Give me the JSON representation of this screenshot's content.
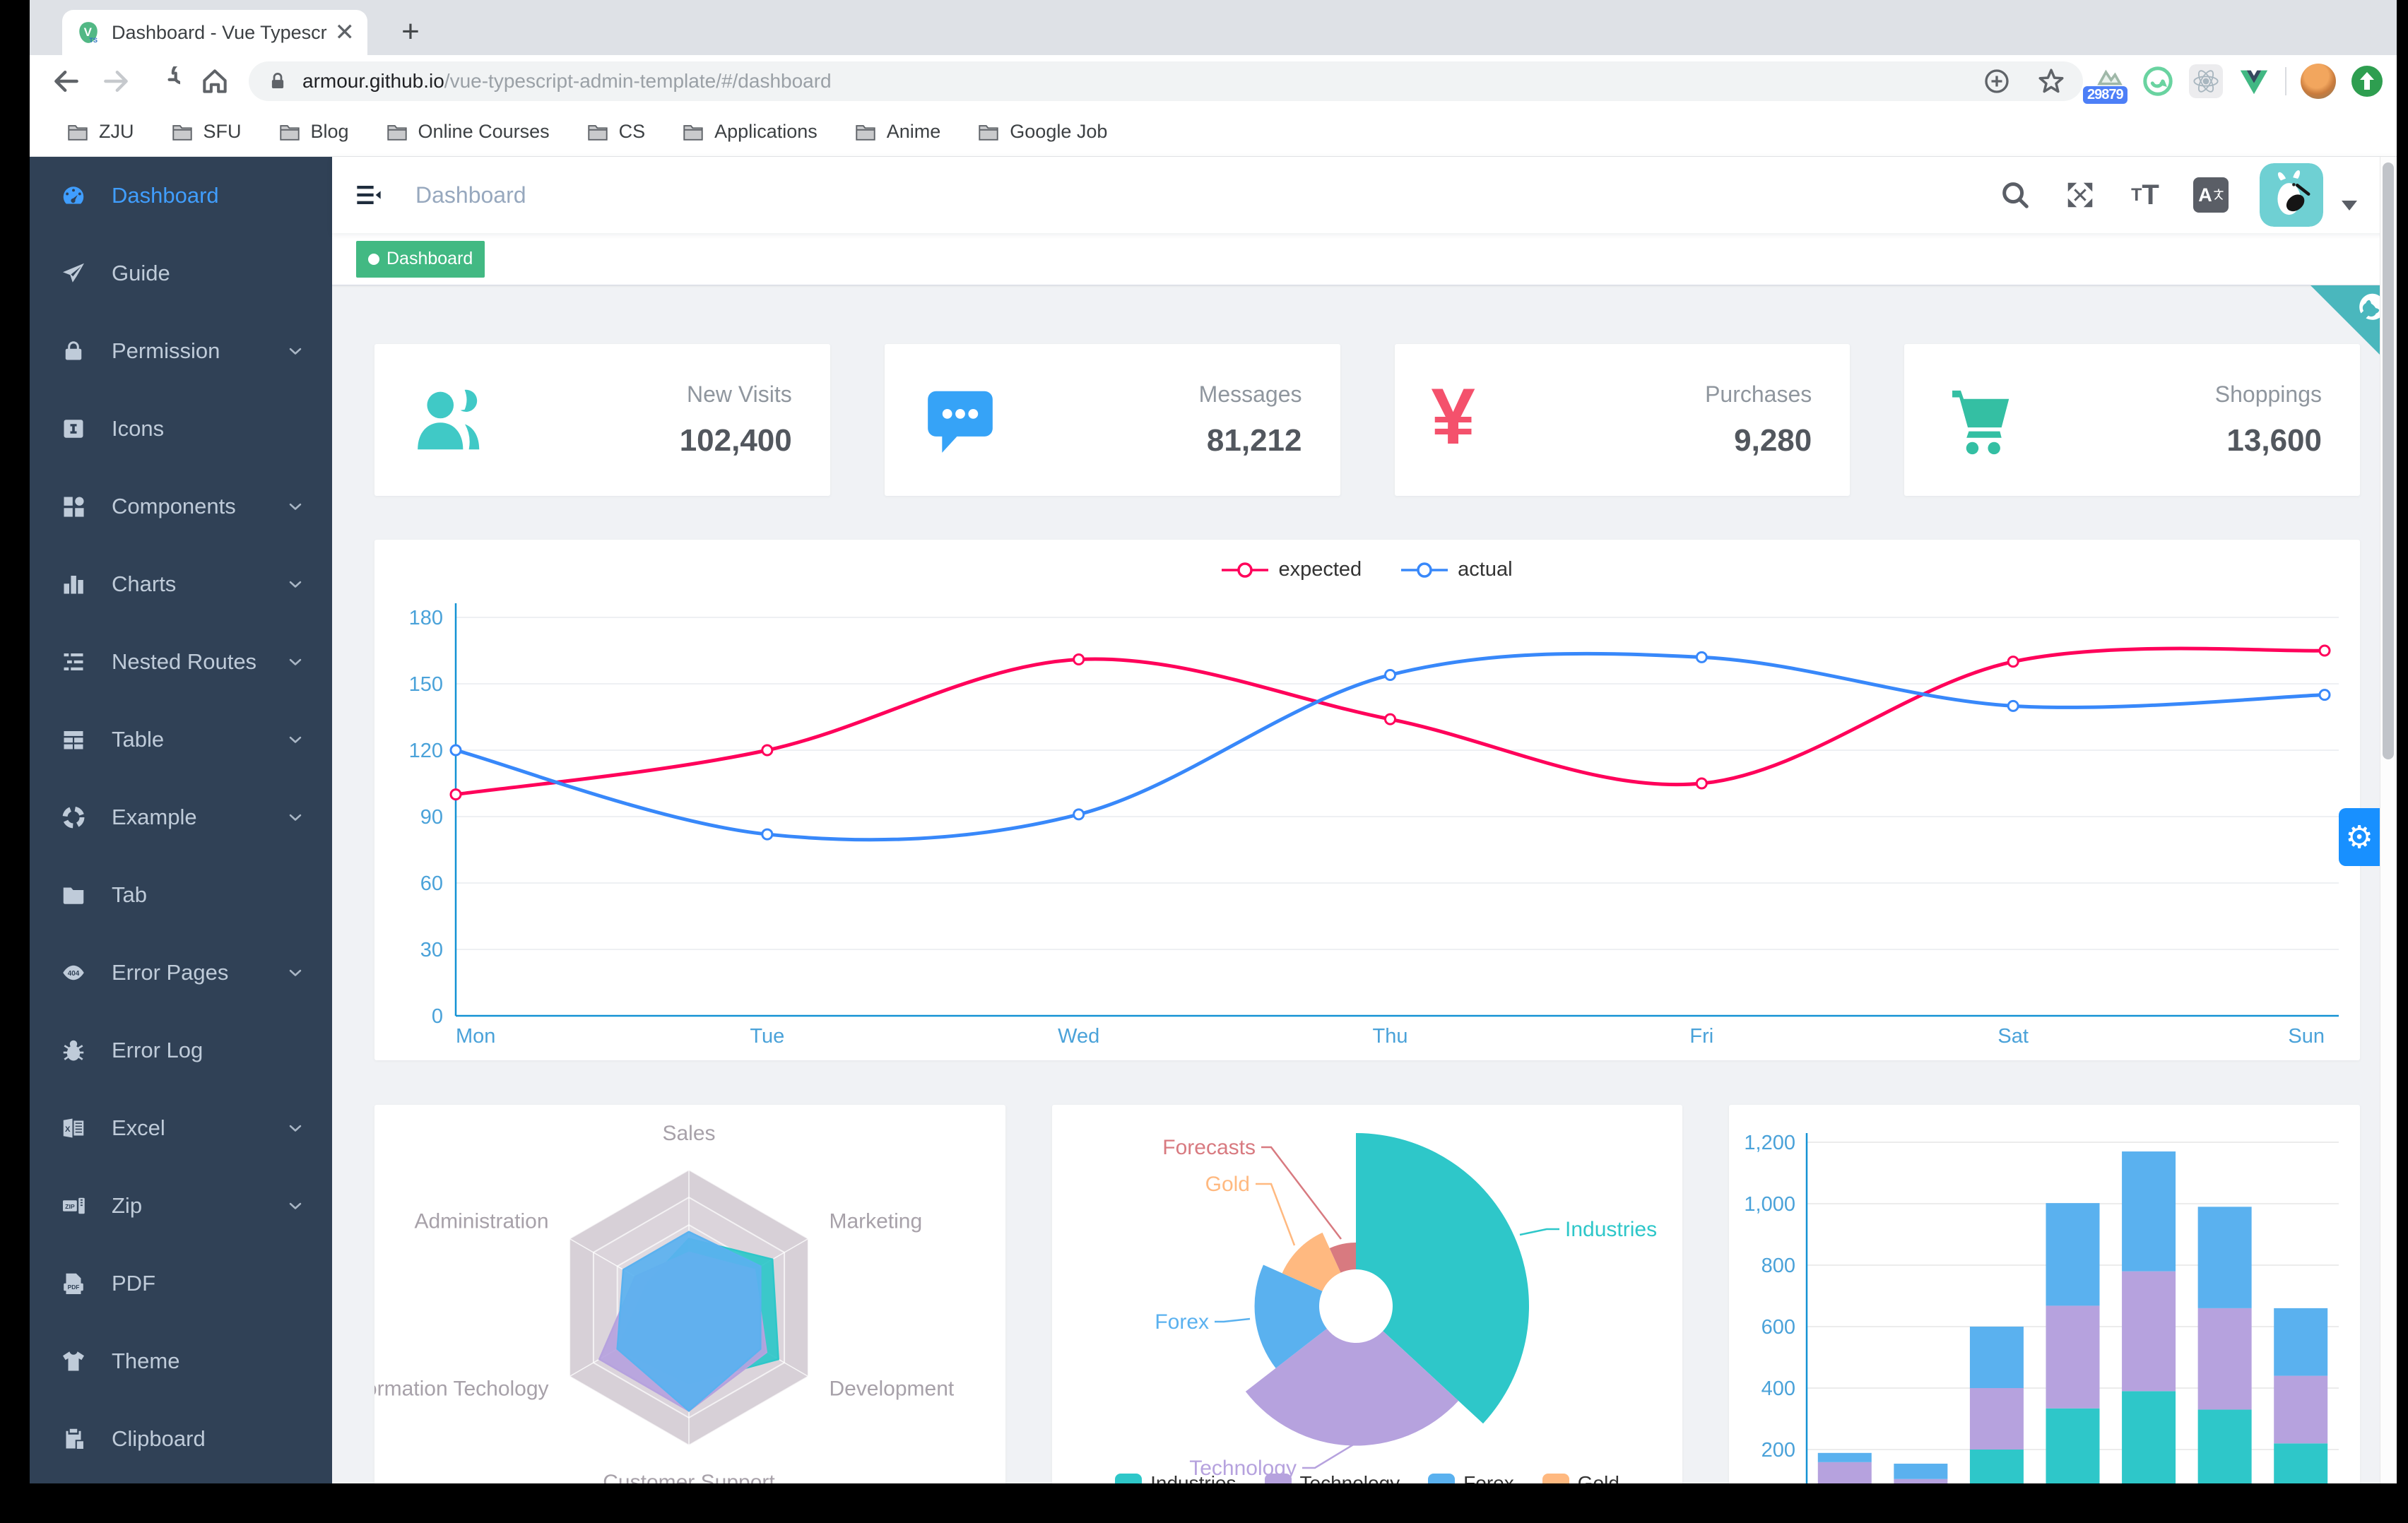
{
  "browser": {
    "tab_title": "Dashboard - Vue Typescript Ad",
    "url_host": "armour.github.io",
    "url_path": "/vue-typescript-admin-template/#/dashboard",
    "extension_badge": "29879",
    "bookmarks": [
      "ZJU",
      "SFU",
      "Blog",
      "Online Courses",
      "CS",
      "Applications",
      "Anime",
      "Google Job"
    ]
  },
  "sidebar": {
    "items": [
      {
        "label": "Dashboard",
        "icon": "dashboard-icon",
        "active": true,
        "chevron": false
      },
      {
        "label": "Guide",
        "icon": "guide-icon",
        "active": false,
        "chevron": false
      },
      {
        "label": "Permission",
        "icon": "lock-icon",
        "active": false,
        "chevron": true
      },
      {
        "label": "Icons",
        "icon": "icons-icon",
        "active": false,
        "chevron": false
      },
      {
        "label": "Components",
        "icon": "components-icon",
        "active": false,
        "chevron": true
      },
      {
        "label": "Charts",
        "icon": "charts-icon",
        "active": false,
        "chevron": true
      },
      {
        "label": "Nested Routes",
        "icon": "nested-routes-icon",
        "active": false,
        "chevron": true
      },
      {
        "label": "Table",
        "icon": "table-icon",
        "active": false,
        "chevron": true
      },
      {
        "label": "Example",
        "icon": "example-icon",
        "active": false,
        "chevron": true
      },
      {
        "label": "Tab",
        "icon": "folder-icon",
        "active": false,
        "chevron": false
      },
      {
        "label": "Error Pages",
        "icon": "error-404-icon",
        "active": false,
        "chevron": true
      },
      {
        "label": "Error Log",
        "icon": "bug-icon",
        "active": false,
        "chevron": false
      },
      {
        "label": "Excel",
        "icon": "excel-icon",
        "active": false,
        "chevron": true
      },
      {
        "label": "Zip",
        "icon": "zip-icon",
        "active": false,
        "chevron": true
      },
      {
        "label": "PDF",
        "icon": "pdf-icon",
        "active": false,
        "chevron": false
      },
      {
        "label": "Theme",
        "icon": "theme-icon",
        "active": false,
        "chevron": false
      },
      {
        "label": "Clipboard",
        "icon": "clipboard-icon",
        "active": false,
        "chevron": false
      }
    ]
  },
  "header": {
    "breadcrumb": "Dashboard"
  },
  "tags": {
    "active_tag": "Dashboard"
  },
  "panel_cards": [
    {
      "title": "New Visits",
      "value": "102,400",
      "icon": "people-icon",
      "color": "#40c9c6"
    },
    {
      "title": "Messages",
      "value": "81,212",
      "icon": "message-icon",
      "color": "#36a3f7"
    },
    {
      "title": "Purchases",
      "value": "9,280",
      "icon": "money-icon",
      "color": "#f4516c"
    },
    {
      "title": "Shoppings",
      "value": "13,600",
      "icon": "shopping-cart-icon",
      "color": "#34bfa3"
    }
  ],
  "chart_data": [
    {
      "type": "line",
      "x": [
        "Mon",
        "Tue",
        "Wed",
        "Thu",
        "Fri",
        "Sat",
        "Sun"
      ],
      "series": [
        {
          "name": "expected",
          "color": "#FF005A",
          "values": [
            100,
            120,
            161,
            134,
            105,
            160,
            165
          ]
        },
        {
          "name": "actual",
          "color": "#3888fa",
          "values": [
            120,
            82,
            91,
            154,
            162,
            140,
            145
          ]
        }
      ],
      "ylim": [
        0,
        180
      ],
      "yticks": [
        0,
        30,
        60,
        90,
        120,
        150,
        180
      ],
      "legend_position": "top",
      "grid": true
    },
    {
      "type": "radar",
      "indicators": [
        {
          "name": "Sales",
          "max": 10000
        },
        {
          "name": "Administration",
          "max": 20000
        },
        {
          "name": "Information Techology",
          "max": 20000
        },
        {
          "name": "Customer Support",
          "max": 20000
        },
        {
          "name": "Development",
          "max": 20000
        },
        {
          "name": "Marketing",
          "max": 20000
        }
      ],
      "series": [
        {
          "color": "#2ec7c9",
          "values": [
            5000,
            7000,
            12000,
            11000,
            15000,
            14000
          ]
        },
        {
          "color": "#b6a2de",
          "values": [
            4000,
            9000,
            15000,
            15000,
            13000,
            11000
          ]
        },
        {
          "color": "#5ab1ef",
          "values": [
            5500,
            11000,
            12000,
            15000,
            12000,
            12000
          ]
        }
      ],
      "legend_visible": false
    },
    {
      "type": "pie",
      "rose": true,
      "slices": [
        {
          "name": "Industries",
          "value": 320,
          "color": "#2ec7c9"
        },
        {
          "name": "Technology",
          "value": 240,
          "color": "#b6a2de"
        },
        {
          "name": "Forex",
          "value": 149,
          "color": "#5ab1ef"
        },
        {
          "name": "Gold",
          "value": 100,
          "color": "#ffb980"
        },
        {
          "name": "Forecasts",
          "value": 59,
          "color": "#d87a80"
        }
      ],
      "legend_position": "bottom"
    },
    {
      "type": "bar",
      "stacked": true,
      "yticks": [
        "200",
        "400",
        "600",
        "800",
        "1,000",
        "1,200"
      ],
      "ylim": [
        0,
        1200
      ],
      "series": [
        {
          "color": "#2ec7c9",
          "values": [
            79,
            52,
            200,
            334,
            390,
            330,
            220
          ]
        },
        {
          "color": "#b6a2de",
          "values": [
            80,
            52,
            200,
            334,
            390,
            330,
            220
          ]
        },
        {
          "color": "#5ab1ef",
          "values": [
            30,
            50,
            200,
            334,
            390,
            330,
            220
          ]
        }
      ]
    }
  ]
}
